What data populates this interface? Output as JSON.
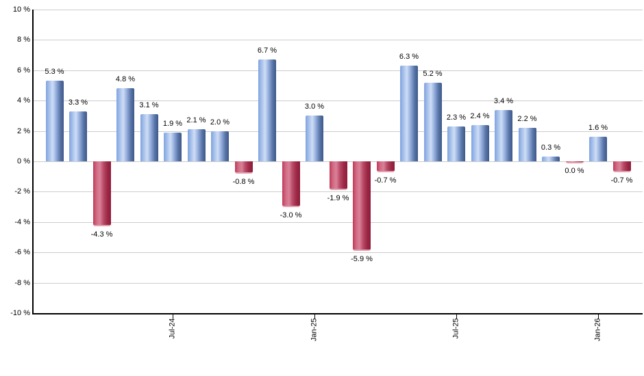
{
  "chart_data": {
    "type": "bar",
    "title": "",
    "xlabel": "",
    "ylabel": "",
    "values": [
      5.3,
      3.3,
      -4.3,
      4.8,
      3.1,
      1.9,
      2.1,
      2.0,
      -0.8,
      6.7,
      -3.0,
      3.0,
      -1.9,
      -5.9,
      -0.7,
      6.3,
      5.2,
      2.3,
      2.4,
      3.4,
      2.2,
      0.3,
      0.0,
      1.6,
      -0.7
    ],
    "bar_value_labels": [
      "5.3 %",
      "3.3 %",
      "-4.3 %",
      "4.8 %",
      "3.1 %",
      "1.9 %",
      "2.1 %",
      "2.0 %",
      "-0.8 %",
      "6.7 %",
      "-3.0 %",
      "3.0 %",
      "-1.9 %",
      "-5.9 %",
      "-0.7 %",
      "6.3 %",
      "5.2 %",
      "2.3 %",
      "2.4 %",
      "3.4 %",
      "2.2 %",
      "0.3 %",
      "0.0 %",
      "1.6 %",
      "-0.7 %"
    ],
    "x_tick_labels": [
      {
        "label": "Jul-24",
        "bar_index": 5
      },
      {
        "label": "Jan-25",
        "bar_index": 11
      },
      {
        "label": "Jul-25",
        "bar_index": 17
      },
      {
        "label": "Jan-26",
        "bar_index": 23
      }
    ],
    "y_tick_labels": [
      "10 %",
      "8 %",
      "6 %",
      "4 %",
      "2 %",
      "0 %",
      "-2 %",
      "-4 %",
      "-6 %",
      "-8 %",
      "-10 %"
    ],
    "ylim": [
      -10,
      10
    ],
    "y_step": 2,
    "grid": true,
    "legend": "none",
    "colors": {
      "positive_bar": "#7fa3df",
      "positive_bar_highlight": "#cfddf5",
      "positive_bar_shadow": "#3d5888",
      "negative_bar": "#c13a58",
      "negative_bar_highlight": "#da8197",
      "negative_bar_shadow": "#8c1c3b",
      "gridline": "#cccccc",
      "axis": "#000000",
      "label_text": "#000000",
      "background": "#ffffff"
    }
  }
}
